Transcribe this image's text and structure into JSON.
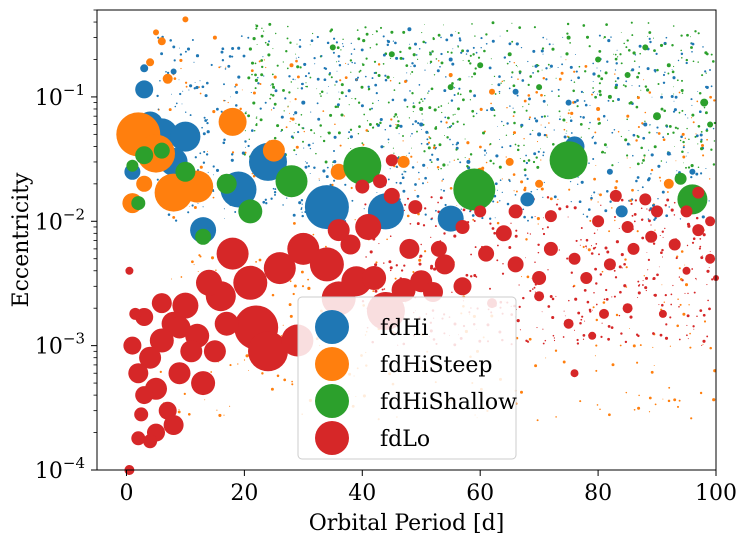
{
  "chart_data": {
    "type": "scatter",
    "xlabel": "Orbital Period [d]",
    "ylabel": "Eccentricity",
    "xlim": [
      -5,
      100
    ],
    "ylim": [
      0.0001,
      0.5
    ],
    "x_scale": "linear",
    "y_scale": "log",
    "x_ticks": [
      0,
      20,
      40,
      60,
      80,
      100
    ],
    "x_tick_labels": [
      "0",
      "20",
      "40",
      "60",
      "80",
      "100"
    ],
    "y_ticks": [
      0.0001,
      0.001,
      0.01,
      0.1
    ],
    "y_tick_labels": [
      {
        "base": "10",
        "exp": "−4"
      },
      {
        "base": "10",
        "exp": "−3"
      },
      {
        "base": "10",
        "exp": "−2"
      },
      {
        "base": "10",
        "exp": "−1"
      }
    ],
    "grid": false,
    "legend_position": "lower-center",
    "series": [
      {
        "name": "fdHi",
        "color": "#1f77b4",
        "points": [
          [
            3,
            0.115,
            9
          ],
          [
            4,
            0.06,
            13
          ],
          [
            6,
            0.05,
            16
          ],
          [
            10,
            0.048,
            15
          ],
          [
            1,
            0.025,
            8
          ],
          [
            8,
            0.03,
            14
          ],
          [
            19,
            0.018,
            18
          ],
          [
            24,
            0.03,
            19
          ],
          [
            34,
            0.013,
            22
          ],
          [
            44,
            0.012,
            18
          ],
          [
            55,
            0.0105,
            13
          ],
          [
            13,
            0.0085,
            13
          ],
          [
            76,
            0.04,
            10
          ],
          [
            84,
            0.012,
            6
          ],
          [
            68,
            0.015,
            7
          ],
          [
            3,
            0.17,
            4
          ],
          [
            8,
            0.16,
            3
          ],
          [
            48,
            0.35,
            2
          ],
          [
            55,
            0.2,
            2
          ],
          [
            62,
            0.08,
            2
          ],
          [
            70,
            0.05,
            2
          ],
          [
            88,
            0.06,
            2
          ],
          [
            92,
            0.035,
            2
          ],
          [
            66,
            0.11,
            3
          ],
          [
            50,
            0.06,
            2
          ],
          [
            30,
            0.09,
            2
          ],
          [
            75,
            0.09,
            3
          ],
          [
            82,
            0.025,
            3
          ],
          [
            96,
            0.025,
            3
          ],
          [
            58,
            0.03,
            2
          ]
        ]
      },
      {
        "name": "fdHiSteep",
        "color": "#ff7f0e",
        "points": [
          [
            2,
            0.05,
            22
          ],
          [
            5,
            0.035,
            19
          ],
          [
            8,
            0.017,
            19
          ],
          [
            12,
            0.019,
            16
          ],
          [
            18,
            0.063,
            14
          ],
          [
            25,
            0.037,
            11
          ],
          [
            1,
            0.014,
            10
          ],
          [
            3,
            0.02,
            8
          ],
          [
            4,
            0.19,
            4
          ],
          [
            6,
            0.28,
            4
          ],
          [
            5,
            0.33,
            3
          ],
          [
            10,
            0.42,
            3
          ],
          [
            7,
            0.14,
            5
          ],
          [
            36,
            0.025,
            8
          ],
          [
            47,
            0.03,
            6
          ],
          [
            60,
            0.025,
            4
          ],
          [
            65,
            0.03,
            4
          ],
          [
            70,
            0.02,
            4
          ],
          [
            92,
            0.02,
            5
          ],
          [
            62,
            0.11,
            3
          ],
          [
            28,
            0.18,
            2
          ],
          [
            15,
            0.3,
            2
          ],
          [
            55,
            0.15,
            2
          ],
          [
            80,
            0.08,
            2
          ]
        ]
      },
      {
        "name": "fdHiShallow",
        "color": "#2ca02c",
        "points": [
          [
            40,
            0.028,
            19
          ],
          [
            59,
            0.018,
            21
          ],
          [
            75,
            0.031,
            19
          ],
          [
            28,
            0.021,
            16
          ],
          [
            21,
            0.012,
            12
          ],
          [
            17,
            0.02,
            10
          ],
          [
            10,
            0.025,
            10
          ],
          [
            3,
            0.034,
            9
          ],
          [
            6,
            0.037,
            8
          ],
          [
            13,
            0.0075,
            8
          ],
          [
            96,
            0.015,
            15
          ],
          [
            2,
            0.014,
            7
          ],
          [
            1,
            0.028,
            6
          ],
          [
            94,
            0.022,
            6
          ],
          [
            98,
            0.09,
            4
          ],
          [
            90,
            0.07,
            4
          ],
          [
            85,
            0.15,
            3
          ],
          [
            70,
            0.12,
            3
          ],
          [
            80,
            0.2,
            3
          ],
          [
            60,
            0.18,
            3
          ],
          [
            45,
            0.22,
            3
          ],
          [
            35,
            0.25,
            3
          ],
          [
            55,
            0.12,
            3
          ],
          [
            88,
            0.25,
            3
          ],
          [
            75,
            0.3,
            2
          ],
          [
            65,
            0.22,
            2
          ],
          [
            92,
            0.18,
            2
          ],
          [
            50,
            0.08,
            2
          ],
          [
            99,
            0.06,
            3
          ],
          [
            82,
            0.1,
            2
          ]
        ]
      },
      {
        "name": "fdLo",
        "color": "#d62728",
        "points": [
          [
            22,
            0.0014,
            22
          ],
          [
            24,
            0.0009,
            20
          ],
          [
            29,
            0.0011,
            16
          ],
          [
            36,
            0.0024,
            17
          ],
          [
            44,
            0.0019,
            19
          ],
          [
            30,
            0.006,
            16
          ],
          [
            34,
            0.0045,
            17
          ],
          [
            26,
            0.0042,
            16
          ],
          [
            39,
            0.0033,
            15
          ],
          [
            21,
            0.0032,
            17
          ],
          [
            16,
            0.0025,
            15
          ],
          [
            18,
            0.0055,
            16
          ],
          [
            14,
            0.0032,
            13
          ],
          [
            10,
            0.0021,
            13
          ],
          [
            8,
            0.0015,
            12
          ],
          [
            6,
            0.0011,
            12
          ],
          [
            4,
            0.0008,
            11
          ],
          [
            2,
            0.0006,
            10
          ],
          [
            3,
            0.0017,
            9
          ],
          [
            6,
            0.0022,
            10
          ],
          [
            5,
            0.00045,
            11
          ],
          [
            3,
            0.0004,
            9
          ],
          [
            1,
            0.001,
            9
          ],
          [
            9,
            0.0014,
            11
          ],
          [
            12,
            0.0012,
            12
          ],
          [
            13,
            0.0005,
            12
          ],
          [
            9,
            0.0006,
            11
          ],
          [
            7,
            0.0003,
            9
          ],
          [
            5,
            0.0002,
            9
          ],
          [
            8,
            0.00023,
            10
          ],
          [
            2,
            0.00018,
            7
          ],
          [
            4,
            0.00017,
            7
          ],
          [
            0.5,
            0.0001,
            5
          ],
          [
            42,
            0.0035,
            12
          ],
          [
            47,
            0.0028,
            12
          ],
          [
            50,
            0.0033,
            11
          ],
          [
            52,
            0.0027,
            10
          ],
          [
            54,
            0.0045,
            10
          ],
          [
            57,
            0.003,
            9
          ],
          [
            61,
            0.0055,
            8
          ],
          [
            38,
            0.0065,
            10
          ],
          [
            41,
            0.009,
            13
          ],
          [
            48,
            0.006,
            10
          ],
          [
            64,
            0.008,
            8
          ],
          [
            66,
            0.0045,
            8
          ],
          [
            70,
            0.0035,
            7
          ],
          [
            72,
            0.006,
            7
          ],
          [
            76,
            0.005,
            6
          ],
          [
            78,
            0.0035,
            6
          ],
          [
            82,
            0.0045,
            6
          ],
          [
            86,
            0.006,
            6
          ],
          [
            89,
            0.0075,
            6
          ],
          [
            93,
            0.0065,
            6
          ],
          [
            97,
            0.0085,
            6
          ],
          [
            99,
            0.005,
            5
          ],
          [
            60,
            0.012,
            6
          ],
          [
            66,
            0.012,
            7
          ],
          [
            72,
            0.011,
            6
          ],
          [
            80,
            0.01,
            6
          ],
          [
            85,
            0.009,
            6
          ],
          [
            90,
            0.012,
            6
          ],
          [
            95,
            0.012,
            6
          ],
          [
            99,
            0.01,
            5
          ],
          [
            83,
            0.016,
            6
          ],
          [
            88,
            0.015,
            6
          ],
          [
            97,
            0.017,
            6
          ],
          [
            75,
            0.0015,
            5
          ],
          [
            81,
            0.0018,
            5
          ],
          [
            85,
            0.002,
            5
          ],
          [
            79,
            0.0012,
            4
          ],
          [
            76,
            0.0006,
            4
          ],
          [
            91,
            0.0018,
            4
          ],
          [
            45,
            0.016,
            8
          ],
          [
            49,
            0.013,
            7
          ],
          [
            43,
            0.021,
            7
          ],
          [
            40,
            0.019,
            7
          ],
          [
            57,
            0.009,
            7
          ],
          [
            53,
            0.006,
            8
          ],
          [
            36,
            0.0085,
            11
          ],
          [
            45,
            0.031,
            6
          ],
          [
            0.5,
            0.004,
            4
          ],
          [
            70,
            0.0025,
            5
          ],
          [
            62,
            0.0022,
            5
          ],
          [
            95,
            0.004,
            4
          ],
          [
            100,
            0.0035,
            3
          ],
          [
            15,
            0.0009,
            11
          ],
          [
            17,
            0.0015,
            12
          ],
          [
            11,
            0.0009,
            11
          ],
          [
            2.5,
            0.00028,
            7
          ],
          [
            1.5,
            0.0018,
            6
          ]
        ]
      }
    ]
  },
  "legend": {
    "items": [
      {
        "label": "fdHi",
        "color": "#1f77b4"
      },
      {
        "label": "fdHiSteep",
        "color": "#ff7f0e"
      },
      {
        "label": "fdHiShallow",
        "color": "#2ca02c"
      },
      {
        "label": "fdLo",
        "color": "#d62728"
      }
    ]
  }
}
